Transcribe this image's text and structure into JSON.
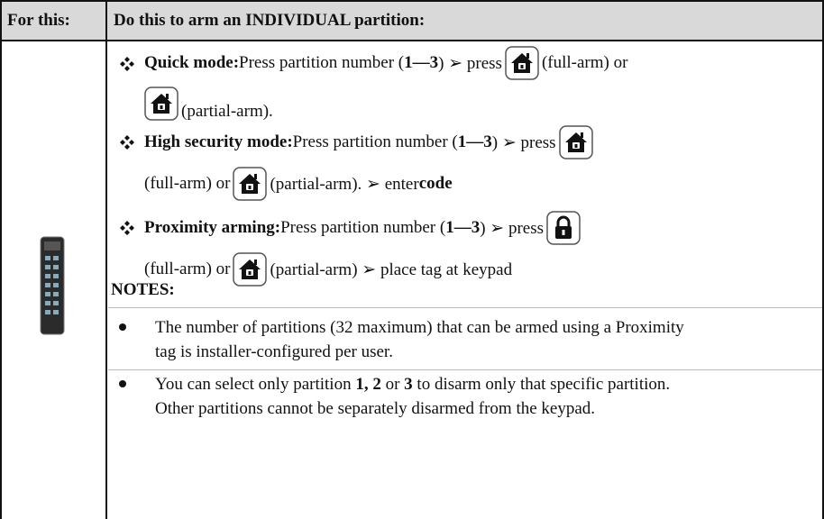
{
  "header": {
    "col1": "For this:",
    "col2": "Do this to arm an INDIVIDUAL partition:"
  },
  "items": [
    {
      "label": "Quick mode:",
      "text": [
        "Press partition number (",
        "1—3",
        ") ➢ press",
        "(full-arm) or",
        "(partial-arm)."
      ]
    },
    {
      "label": "High security mode:",
      "text": [
        "Press partition number (",
        "1—3",
        ") ➢ press",
        "(full-arm) or",
        "(partial-arm). ➢ enter",
        "code"
      ]
    },
    {
      "label": "Proximity arming:",
      "text": [
        "Press partition number (",
        "1—3",
        ") ➢ press",
        "(full-arm) or",
        "(partial-arm) ➢ place tag at keypad"
      ]
    }
  ],
  "notes": {
    "title": "NOTES:",
    "items": [
      [
        "The number of partitions (32 maximum) that can be armed using a Proximity tag is installer-configured per user."
      ],
      [
        "You can select only partition",
        "1, 2",
        "or",
        "3",
        "to disarm only that specific partition. Other partitions cannot be separately disarmed from the keypad."
      ]
    ]
  }
}
